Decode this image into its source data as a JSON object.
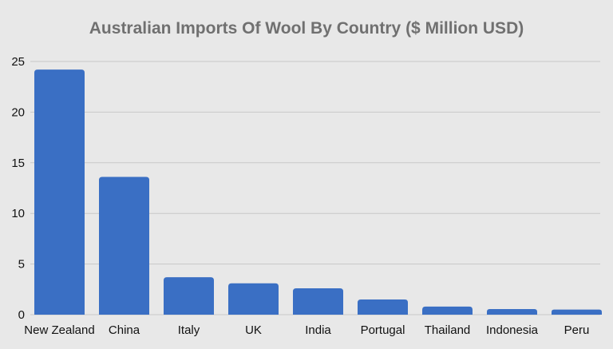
{
  "chart_data": {
    "type": "bar",
    "title": "Australian Imports Of Wool By Country ($ Million USD)",
    "xlabel": "",
    "ylabel": "",
    "categories": [
      "New Zealand",
      "China",
      "Italy",
      "UK",
      "India",
      "Portugal",
      "Thailand",
      "Indonesia",
      "Peru"
    ],
    "values": [
      24.2,
      13.6,
      3.7,
      3.1,
      2.6,
      1.5,
      0.8,
      0.55,
      0.5
    ],
    "ylim": [
      0,
      25
    ],
    "yticks": [
      0,
      5,
      10,
      15,
      20,
      25
    ],
    "grid": true,
    "legend": "none",
    "bar_color": "#3a6fc4",
    "grid_color": "#c8c8c8",
    "background": "#e8e8e8"
  }
}
